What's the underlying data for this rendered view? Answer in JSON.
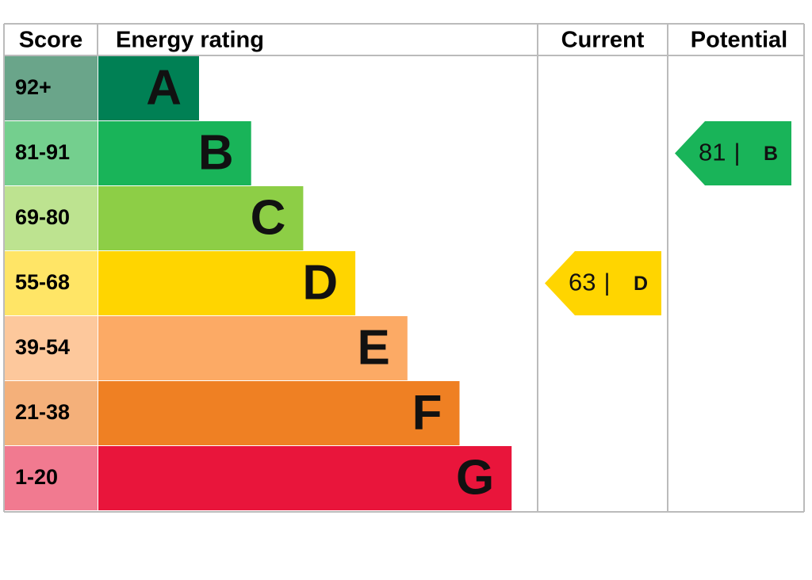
{
  "header": {
    "score": "Score",
    "rating": "Energy rating",
    "current": "Current",
    "potential": "Potential"
  },
  "bands": [
    {
      "score": "92+",
      "letter": "A",
      "color": "#008054",
      "score_color": "#6aa58a"
    },
    {
      "score": "81-91",
      "letter": "B",
      "color": "#19b459",
      "score_color": "#74cf8e"
    },
    {
      "score": "69-80",
      "letter": "C",
      "color": "#8dce46",
      "score_color": "#bde390"
    },
    {
      "score": "55-68",
      "letter": "D",
      "color": "#ffd500",
      "score_color": "#ffe566"
    },
    {
      "score": "39-54",
      "letter": "E",
      "color": "#fcaa65",
      "score_color": "#fdc89c"
    },
    {
      "score": "21-38",
      "letter": "F",
      "color": "#ef8023",
      "score_color": "#f4b07a"
    },
    {
      "score": "1-20",
      "letter": "G",
      "color": "#e9153b",
      "score_color": "#f17a90"
    }
  ],
  "current": {
    "value": 63,
    "separator": "|",
    "letter": "D"
  },
  "potential": {
    "value": 81,
    "separator": "|",
    "letter": "B"
  }
}
